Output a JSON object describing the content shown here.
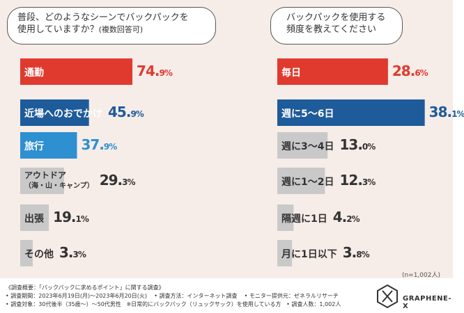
{
  "chart_data": [
    {
      "type": "bar",
      "title": "普段、どのようなシーンでバックパックを使用していますか？(複数回答可)",
      "title_line1": "普段、どのようなシーンでバックパックを",
      "title_line2": "使用していますか？",
      "title_line2_small": "(複数回答可)",
      "categories": [
        "通勤",
        "近場へのおでかけ",
        "旅行",
        "アウトドア（海・山・キャンプ）",
        "出張",
        "その他"
      ],
      "label_lines": [
        [
          "通勤"
        ],
        [
          "近場へのおでかけ"
        ],
        [
          "旅行"
        ],
        [
          "アウトドア",
          "（海・山・キャンプ）"
        ],
        [
          "出張"
        ],
        [
          "その他"
        ]
      ],
      "values": [
        74.9,
        45.9,
        37.9,
        29.3,
        19.1,
        3.3
      ],
      "pct_big": [
        "74.",
        "45.",
        "37.",
        "29.",
        "19.",
        "3."
      ],
      "pct_small": [
        "9%",
        "9%",
        "9%",
        "3%",
        "1%",
        "3%"
      ],
      "colors": [
        "#e03a2f",
        "#1e5b9a",
        "#2e8fd1",
        "#c9c9c9",
        "#c9c9c9",
        "#c9c9c9"
      ],
      "label_colors": [
        "#ffffff",
        "#ffffff",
        "#ffffff",
        "#333333",
        "#333333",
        "#333333"
      ],
      "pct_colors": [
        "#e03a2f",
        "#1e5b9a",
        "#2e8fd1",
        "#333333",
        "#333333",
        "#333333"
      ],
      "xlim": [
        0,
        100
      ]
    },
    {
      "type": "bar",
      "title": "バックパックを使用する頻度を教えてください",
      "title_line1": "バックパックを使用する",
      "title_line2": "頻度を教えてください",
      "categories": [
        "毎日",
        "週に5〜6日",
        "週に3〜4日",
        "週に1〜2日",
        "隔週に1日",
        "月に1日以下"
      ],
      "values": [
        28.6,
        38.1,
        13.0,
        12.3,
        4.2,
        3.8
      ],
      "pct_big": [
        "28.",
        "38.",
        "13.",
        "12.",
        "4.",
        "3."
      ],
      "pct_small": [
        "6%",
        "1%",
        "0%",
        "3%",
        "2%",
        "8%"
      ],
      "colors": [
        "#e03a2f",
        "#1e5b9a",
        "#c9c9c9",
        "#c9c9c9",
        "#c9c9c9",
        "#c9c9c9"
      ],
      "label_colors": [
        "#ffffff",
        "#ffffff",
        "#333333",
        "#333333",
        "#333333",
        "#333333"
      ],
      "pct_colors": [
        "#e03a2f",
        "#1e5b9a",
        "#333333",
        "#333333",
        "#333333",
        "#333333"
      ],
      "xlim": [
        0,
        45
      ]
    }
  ],
  "sample_note": "(n=1,002人)",
  "footer": {
    "line1": "《調査概要：「バックパックに求めるポイント」に関する調査》",
    "line2a": "• 調査期間：2023年6月19日(月)〜2023年6月20日(火)",
    "line2b": "• 調査方法：インターネット調査",
    "line2c": "• モニター提供元：ゼネラルリサーチ",
    "line3a": "• 調査対象：30代後半（35歳〜）〜50代男性",
    "line3b": "※日常的にバックパック（リュックサック）を使用している方",
    "line3c": "• 調査人数：1,002人"
  },
  "brand": {
    "name": "GRAPHENE-X"
  }
}
